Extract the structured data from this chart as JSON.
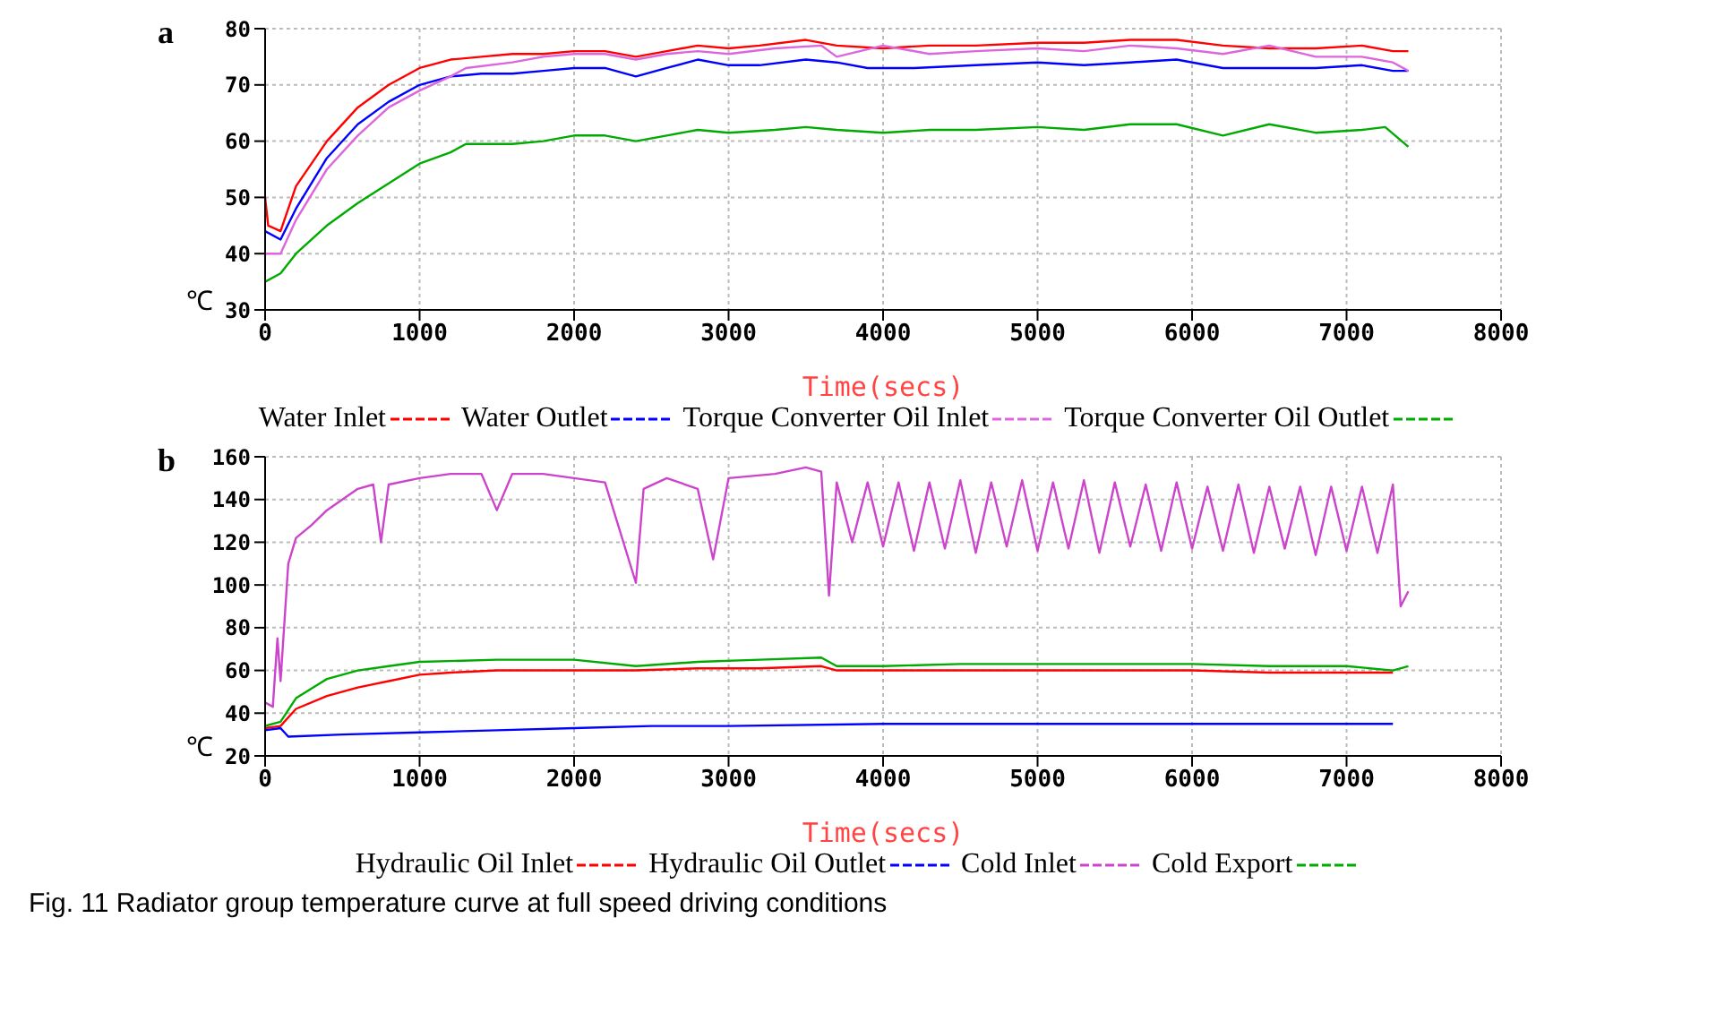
{
  "chart_data": [
    {
      "type": "line",
      "title": "a",
      "xlabel": "Time(secs)",
      "ylabel": "℃",
      "xlim": [
        0,
        8000
      ],
      "xticks": [
        0,
        1000,
        2000,
        3000,
        4000,
        5000,
        6000,
        7000,
        8000
      ],
      "ylim": [
        30,
        80
      ],
      "yticks": [
        30,
        40,
        50,
        60,
        70,
        80
      ],
      "grid": true,
      "legend": "bottom",
      "marker": "none",
      "line_style": "solid",
      "series": [
        {
          "name": "Water Inlet",
          "color": "#ff0000",
          "x": [
            0,
            20,
            100,
            200,
            400,
            600,
            800,
            1000,
            1200,
            1400,
            1600,
            1800,
            2000,
            2200,
            2400,
            2600,
            2800,
            3000,
            3200,
            3500,
            3700,
            4000,
            4300,
            4600,
            5000,
            5300,
            5600,
            5900,
            6200,
            6500,
            6800,
            7100,
            7300,
            7400
          ],
          "values": [
            50,
            45,
            44,
            52,
            60,
            66,
            70,
            73,
            74.5,
            75,
            75.5,
            75.5,
            76,
            76,
            75,
            76,
            77,
            76.5,
            77,
            78,
            77,
            76.5,
            77,
            77,
            77.5,
            77.5,
            78,
            78,
            77,
            76.5,
            76.5,
            77,
            76,
            76
          ]
        },
        {
          "name": "Water Outlet",
          "color": "#0000ff",
          "x": [
            0,
            100,
            200,
            400,
            600,
            800,
            1000,
            1200,
            1400,
            1600,
            1800,
            2000,
            2200,
            2400,
            2600,
            2800,
            3000,
            3200,
            3500,
            3700,
            3900,
            4200,
            4600,
            5000,
            5300,
            5600,
            5900,
            6200,
            6500,
            6800,
            7100,
            7300,
            7400
          ],
          "values": [
            44,
            42.5,
            48,
            57,
            63,
            67,
            70,
            71.5,
            72,
            72,
            72.5,
            73,
            73,
            71.5,
            73,
            74.5,
            73.5,
            73.5,
            74.5,
            74,
            73,
            73,
            73.5,
            74,
            73.5,
            74,
            74.5,
            73,
            73,
            73,
            73.5,
            72.5,
            72.5
          ]
        },
        {
          "name": "Torque Converter Oil Inlet",
          "color": "#dd66dd",
          "x": [
            0,
            100,
            200,
            400,
            600,
            800,
            1000,
            1200,
            1300,
            1600,
            1800,
            2000,
            2200,
            2400,
            2600,
            2800,
            3000,
            3300,
            3600,
            3700,
            4000,
            4300,
            4600,
            5000,
            5300,
            5600,
            5900,
            6200,
            6500,
            6800,
            7100,
            7300,
            7400
          ],
          "values": [
            40,
            40,
            46,
            55,
            61,
            66,
            69,
            71.5,
            73,
            74,
            75,
            75.5,
            75.5,
            74.5,
            75.5,
            76,
            75.5,
            76.5,
            77,
            75,
            77,
            75.5,
            76,
            76.5,
            76,
            77,
            76.5,
            75.5,
            77,
            75,
            75,
            74,
            72.5
          ]
        },
        {
          "name": "Torque Converter Oil Outlet",
          "color": "#00aa00",
          "x": [
            0,
            100,
            200,
            400,
            600,
            800,
            1000,
            1200,
            1300,
            1600,
            1800,
            2000,
            2200,
            2400,
            2600,
            2800,
            3000,
            3300,
            3500,
            3700,
            4000,
            4300,
            4600,
            5000,
            5300,
            5600,
            5900,
            6200,
            6500,
            6800,
            7100,
            7250,
            7400
          ],
          "values": [
            35,
            36.5,
            40,
            45,
            49,
            52.5,
            56,
            58,
            59.5,
            59.5,
            60,
            61,
            61,
            60,
            61,
            62,
            61.5,
            62,
            62.5,
            62,
            61.5,
            62,
            62,
            62.5,
            62,
            63,
            63,
            61,
            63,
            61.5,
            62,
            62.5,
            59
          ]
        }
      ]
    },
    {
      "type": "line",
      "title": "b",
      "xlabel": "Time(secs)",
      "ylabel": "℃",
      "xlim": [
        0,
        8000
      ],
      "xticks": [
        0,
        1000,
        2000,
        3000,
        4000,
        5000,
        6000,
        7000,
        8000
      ],
      "ylim": [
        20,
        160
      ],
      "yticks": [
        20,
        40,
        60,
        80,
        100,
        120,
        140,
        160
      ],
      "grid": true,
      "legend": "bottom",
      "marker": "none",
      "line_style": "solid",
      "annotations": [
        "Fig. 11 Radiator group temperature curve at full speed driving conditions"
      ],
      "series": [
        {
          "name": "Hydraulic Oil Inlet",
          "color": "#ff0000",
          "x": [
            0,
            100,
            200,
            400,
            600,
            800,
            1000,
            1200,
            1500,
            2000,
            2400,
            2800,
            3200,
            3600,
            3700,
            4000,
            4500,
            5000,
            5500,
            6000,
            6500,
            7000,
            7300
          ],
          "values": [
            33,
            34,
            42,
            48,
            52,
            55,
            58,
            59,
            60,
            60,
            60,
            61,
            61,
            62,
            60,
            60,
            60,
            60,
            60,
            60,
            59,
            59,
            59
          ]
        },
        {
          "name": "Hydraulic Oil Outlet",
          "color": "#0000ff",
          "x": [
            0,
            100,
            150,
            500,
            1000,
            1500,
            2000,
            2500,
            3000,
            4000,
            5000,
            6000,
            7000,
            7300
          ],
          "values": [
            32,
            33,
            29,
            30,
            31,
            32,
            33,
            34,
            34,
            35,
            35,
            35,
            35,
            35
          ]
        },
        {
          "name": "Cold Inlet",
          "color": "#cc44cc",
          "x": [
            0,
            50,
            80,
            100,
            150,
            200,
            300,
            400,
            500,
            600,
            700,
            750,
            800,
            1000,
            1200,
            1400,
            1500,
            1600,
            1800,
            2000,
            2200,
            2400,
            2450,
            2600,
            2800,
            2900,
            3000,
            3300,
            3500,
            3600,
            3650,
            3700,
            3800,
            3900,
            4000,
            4100,
            4200,
            4300,
            4400,
            4500,
            4600,
            4700,
            4800,
            4900,
            5000,
            5100,
            5200,
            5300,
            5400,
            5500,
            5600,
            5700,
            5800,
            5900,
            6000,
            6100,
            6200,
            6300,
            6400,
            6500,
            6600,
            6700,
            6800,
            6900,
            7000,
            7100,
            7200,
            7300,
            7350,
            7400
          ],
          "values": [
            45,
            43,
            75,
            55,
            110,
            122,
            128,
            135,
            140,
            145,
            147,
            120,
            147,
            150,
            152,
            152,
            135,
            152,
            152,
            150,
            148,
            101,
            145,
            150,
            145,
            112,
            150,
            152,
            155,
            153,
            95,
            148,
            120,
            148,
            118,
            148,
            116,
            148,
            117,
            149,
            115,
            148,
            118,
            149,
            116,
            148,
            117,
            149,
            115,
            148,
            118,
            147,
            116,
            148,
            117,
            146,
            116,
            147,
            115,
            146,
            117,
            146,
            114,
            146,
            116,
            146,
            115,
            147,
            90,
            97
          ]
        },
        {
          "name": "Cold Export",
          "color": "#00aa00",
          "x": [
            0,
            100,
            200,
            400,
            600,
            800,
            1000,
            1500,
            2000,
            2400,
            2800,
            3200,
            3600,
            3700,
            4000,
            4500,
            5000,
            5500,
            6000,
            6500,
            7000,
            7300,
            7400
          ],
          "values": [
            34,
            36,
            47,
            56,
            60,
            62,
            64,
            65,
            65,
            62,
            64,
            65,
            66,
            62,
            62,
            63,
            63,
            63,
            63,
            62,
            62,
            60,
            62
          ]
        }
      ]
    }
  ]
}
